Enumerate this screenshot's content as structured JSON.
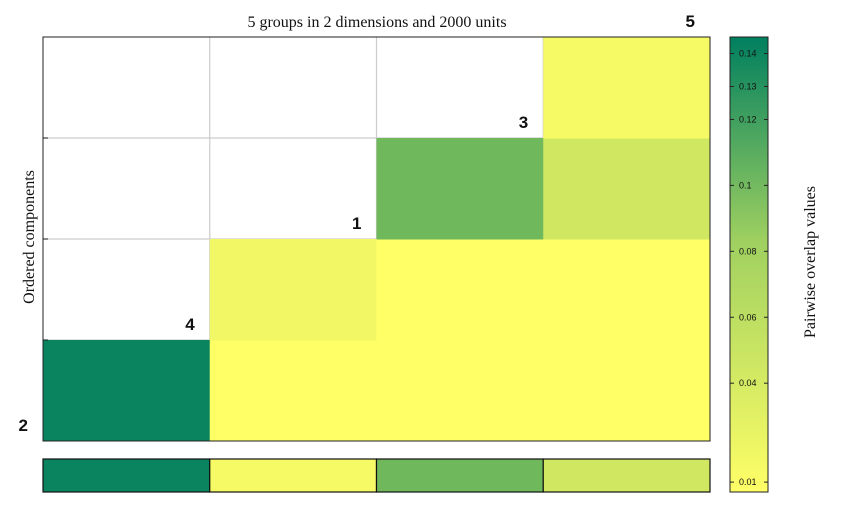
{
  "colors": {
    "low": "#ffff66",
    "mid": "#7fbf5c",
    "high": "#007f5f",
    "grid": "#cccccc",
    "axis": "#222222"
  },
  "chart_data": {
    "type": "heatmap",
    "title": "5 groups in 2 dimensions and 2000 units",
    "ylabel": "Ordered components",
    "colorbar_label": "Pairwise overlap values",
    "colorbar_ticks": [
      "0.14",
      "0.13",
      "0.12",
      "0.1",
      "0.08",
      "0.06",
      "0.04",
      "0.01"
    ],
    "colorbar_tick_values": [
      0.14,
      0.13,
      0.12,
      0.1,
      0.08,
      0.06,
      0.04,
      0.01
    ],
    "colorbar_range": [
      0.007,
      0.145
    ],
    "component_labels": [
      {
        "text": "2",
        "row": 0,
        "col": -1
      },
      {
        "text": "4",
        "row": 1,
        "col": 0
      },
      {
        "text": "1",
        "row": 2,
        "col": 1
      },
      {
        "text": "3",
        "row": 3,
        "col": 2
      },
      {
        "text": "5",
        "row": 4,
        "col": 3
      }
    ],
    "cells": [
      {
        "row": 0,
        "col": 0,
        "value": 0.14
      },
      {
        "row": 0,
        "col": 1,
        "value": 0.007
      },
      {
        "row": 0,
        "col": 2,
        "value": 0.007
      },
      {
        "row": 0,
        "col": 3,
        "value": 0.007
      },
      {
        "row": 1,
        "col": 1,
        "value": 0.015
      },
      {
        "row": 1,
        "col": 2,
        "value": 0.007
      },
      {
        "row": 1,
        "col": 3,
        "value": 0.007
      },
      {
        "row": 2,
        "col": 2,
        "value": 0.09
      },
      {
        "row": 2,
        "col": 3,
        "value": 0.035
      },
      {
        "row": 3,
        "col": 3,
        "value": 0.013
      }
    ],
    "bottom_row": [
      0.14,
      0.013,
      0.09,
      0.035
    ]
  }
}
